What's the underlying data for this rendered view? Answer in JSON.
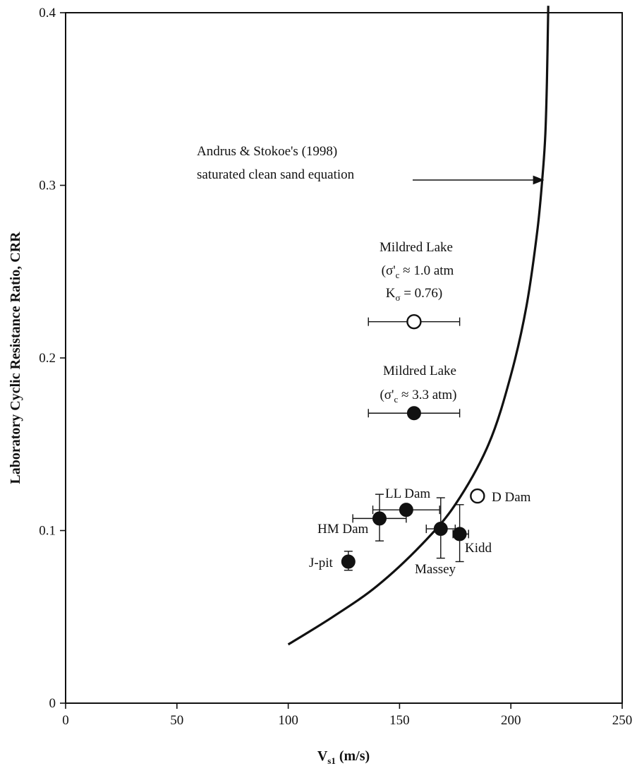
{
  "chart_data": {
    "type": "scatter",
    "xlabel_main": "V",
    "xlabel_sub": "s1",
    "xlabel_unit": " (m/s)",
    "ylabel": "Laboratory Cyclic Resistance Ratio, CRR",
    "xlim": [
      0,
      250
    ],
    "ylim": [
      0,
      0.4
    ],
    "x_ticks": [
      0,
      50,
      100,
      150,
      200,
      250
    ],
    "x_tick_labels": [
      "0",
      "50",
      "100",
      "150",
      "200",
      "250"
    ],
    "y_ticks": [
      0,
      0.1,
      0.2,
      0.3,
      0.4
    ],
    "y_tick_labels": [
      "0",
      "0.1",
      "0.2",
      "0.3",
      "0.4"
    ],
    "grid": false,
    "curve": {
      "x": [
        100,
        120,
        140,
        160,
        175,
        190,
        200,
        207,
        212,
        214.5,
        215.5,
        216.2,
        216.8
      ],
      "y": [
        0.034,
        0.05,
        0.068,
        0.092,
        0.115,
        0.15,
        0.19,
        0.23,
        0.275,
        0.31,
        0.33,
        0.36,
        0.404
      ]
    },
    "points": [
      {
        "label": "J-pit",
        "x": 127,
        "y": 0.082,
        "filled": true,
        "xerr": [
          127,
          127
        ],
        "yerr": [
          0.077,
          0.088
        ]
      },
      {
        "label": "HM Dam",
        "x": 141,
        "y": 0.107,
        "filled": true,
        "xerr": [
          129,
          153
        ],
        "yerr": [
          0.094,
          0.121
        ]
      },
      {
        "label": "LL Dam",
        "x": 153,
        "y": 0.112,
        "filled": true,
        "xerr": [
          138,
          168
        ],
        "yerr": [
          0.112,
          0.112
        ]
      },
      {
        "label": "Massey",
        "x": 168.5,
        "y": 0.101,
        "filled": true,
        "xerr": [
          162,
          175
        ],
        "yerr": [
          0.084,
          0.119
        ]
      },
      {
        "label": "Kidd",
        "x": 177,
        "y": 0.098,
        "filled": true,
        "xerr": [
          174,
          181
        ],
        "yerr": [
          0.082,
          0.115
        ]
      },
      {
        "label": "D Dam",
        "x": 185,
        "y": 0.12,
        "filled": false,
        "xerr": [
          185,
          185
        ],
        "yerr": [
          0.12,
          0.12
        ]
      },
      {
        "label": "Mildred Lake 3.3",
        "x": 156.5,
        "y": 0.168,
        "filled": true,
        "xerr": [
          136,
          177
        ],
        "yerr": [
          0.168,
          0.168
        ]
      },
      {
        "label": "Mildred Lake 1.0",
        "x": 156.5,
        "y": 0.221,
        "filled": false,
        "xerr": [
          136,
          177
        ],
        "yerr": [
          0.221,
          0.221
        ]
      }
    ],
    "annotations": {
      "andrus_line1": "Andrus & Stokoe's (1998)",
      "andrus_line2": "saturated clean sand equation",
      "mildred1_line1": "Mildred Lake",
      "mildred1_line2_open": "(σ'",
      "mildred1_line2_sub": "c",
      "mildred1_line2_rest": " ≈ 1.0 atm",
      "mildred1_line3_main": "K",
      "mildred1_line3_sub": "σ",
      "mildred1_line3_rest": " = 0.76)",
      "mildred2_line1": "Mildred Lake",
      "mildred2_line2_open": "(σ'",
      "mildred2_line2_sub": "c",
      "mildred2_line2_rest": " ≈ 3.3 atm)",
      "label_llk": "LL Dam",
      "label_hm": "HM Dam",
      "label_jpit": "J-pit",
      "label_massey": "Massey",
      "label_kidd": "Kidd",
      "label_ddam": "D Dam"
    }
  }
}
